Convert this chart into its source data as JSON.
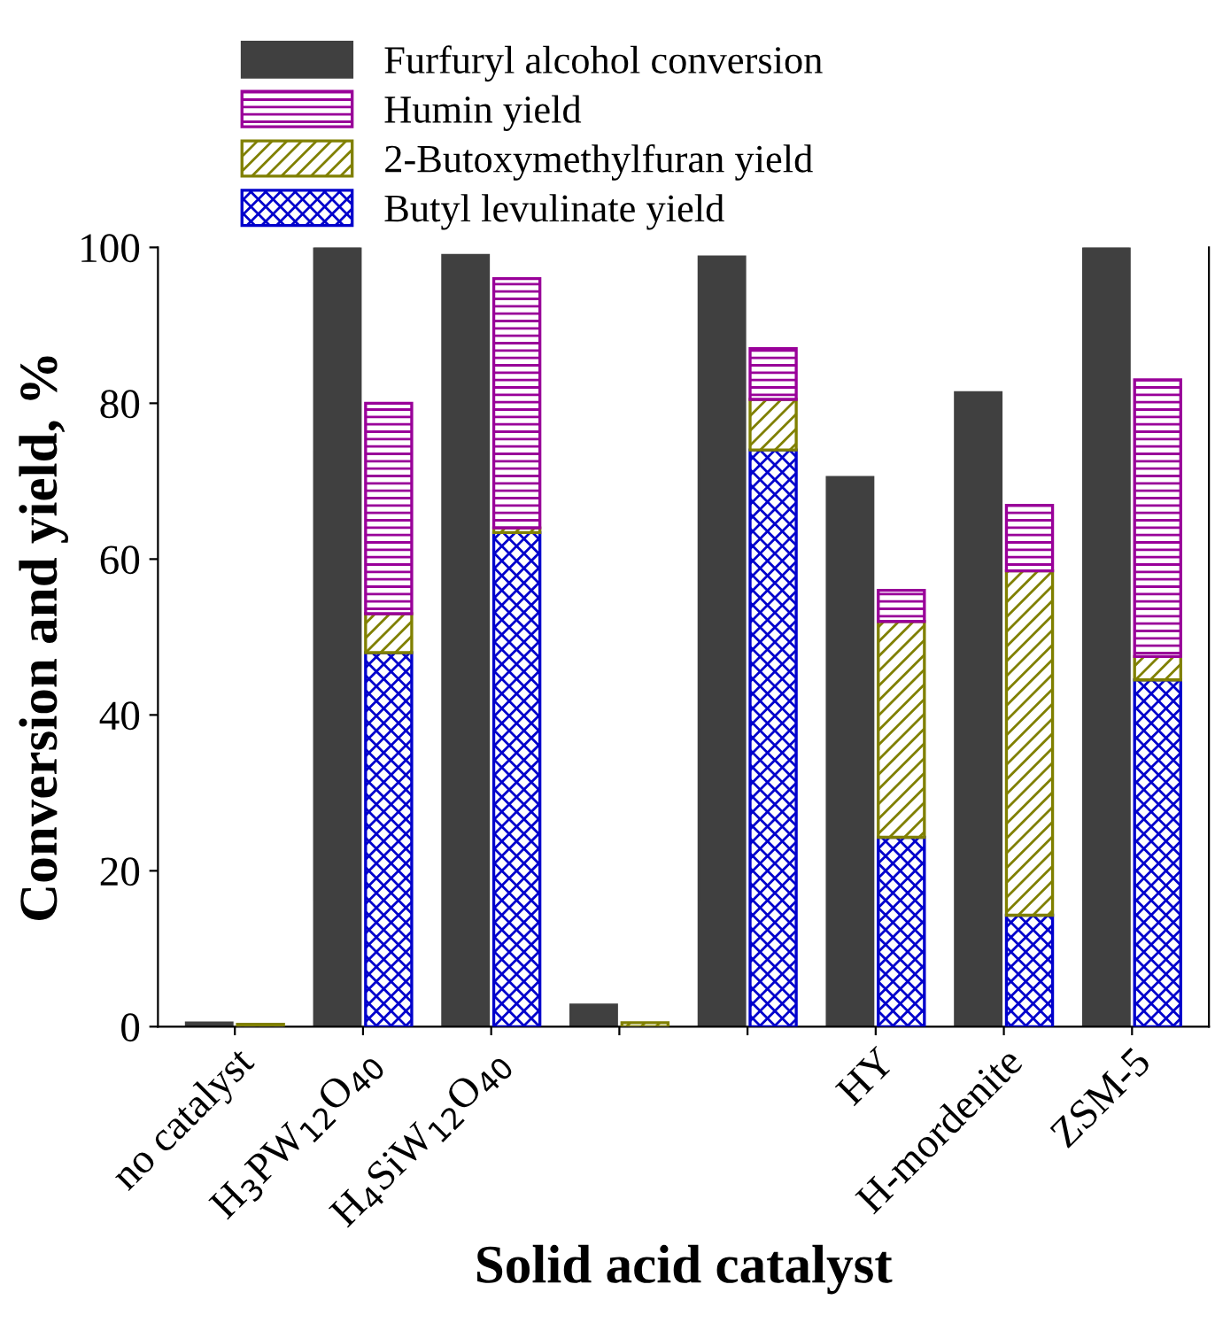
{
  "chart_data": [
    {
      "type": "bar",
      "legend": "top left",
      "xlabel": "Solid acid catalyst",
      "ylabel": "Conversion and yield, %",
      "categories": [
        "no catalyst",
        "H$_{3}$PW$_{12}$O$_{40}$",
        "H$_{4}$SiW$_{12}$O$_{40}$",
        null,
        null,
        "HY",
        "H-mordenite",
        "ZSM-5"
      ],
      "series": [
        {
          "name": "Furfuryl alcohol conversion",
          "color": "#404040",
          "values": [
            0.5,
            100,
            99,
            2.8,
            98.8,
            70.5,
            81.4,
            100
          ]
        }
      ],
      "ylim": [
        0,
        100
      ],
      "yticks": [
        0,
        20,
        40,
        60,
        80,
        100
      ],
      "grid": false
    },
    {
      "type": "bar",
      "stacked": true,
      "legend": "top left",
      "tick_labels": false,
      "categories": [
        "no catalyst",
        "H$_{3}$PW$_{12}$O$_{40}$",
        "H$_{4}$SiW$_{12}$O$_{40}$",
        null,
        null,
        "HY",
        "H-mordenite",
        "ZSM-5"
      ],
      "series": [
        {
          "name": "Butyl levulinate yield",
          "color": "#0000cc",
          "values": [
            0,
            48,
            63.4,
            0,
            74,
            24.3,
            14.3,
            44.5
          ]
        },
        {
          "name": "2-Butoxymethylfuran yield",
          "color": "#808000",
          "values": [
            0.3,
            5,
            0.6,
            0.5,
            6.5,
            27.7,
            44.2,
            3
          ]
        },
        {
          "name": "Humin yield",
          "color": "#990099",
          "values": [
            null,
            27,
            32,
            null,
            6.5,
            4,
            8.4,
            35.5
          ]
        }
      ],
      "ylim": [
        0,
        100
      ],
      "yticks": [
        0,
        20,
        40,
        60,
        80,
        100
      ],
      "grid": false
    }
  ]
}
